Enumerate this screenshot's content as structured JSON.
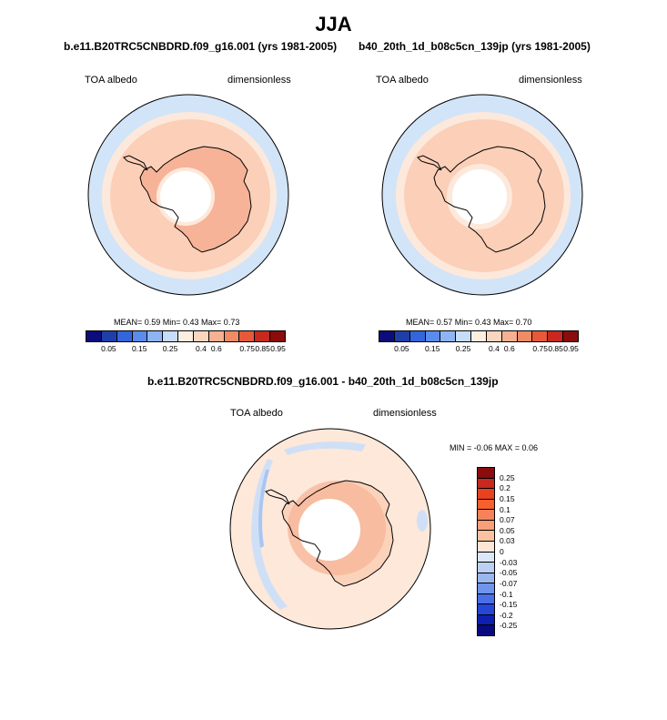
{
  "title": "JJA",
  "panels": [
    {
      "title": "b.e11.B20TRC5CNBDRD.f09_g16.001 (yrs 1981-2005)",
      "left_label": "TOA albedo",
      "right_label": "dimensionless",
      "stats": "MEAN=   0.59  Min=   0.43  Max=   0.73"
    },
    {
      "title": "b40_20th_1d_b08c5cn_139jp (yrs 1981-2005)",
      "left_label": "TOA albedo",
      "right_label": "dimensionless",
      "stats": "MEAN=   0.57  Min=   0.43  Max=   0.70"
    },
    {
      "title": "b.e11.B20TRC5CNBDRD.f09_g16.001 - b40_20th_1d_b08c5cn_139jp",
      "left_label": "TOA albedo",
      "right_label": "dimensionless",
      "stats": "MIN =  -0.06 MAX =   0.06"
    }
  ],
  "colorbar_abs": {
    "colors": [
      "#0c0c7a",
      "#1e3fa8",
      "#3366dd",
      "#5a8cee",
      "#8fb4f4",
      "#c6dcf8",
      "#fdeee0",
      "#fbd6bf",
      "#f6b092",
      "#f08b66",
      "#e65a3a",
      "#c8281e",
      "#8a0c0c"
    ],
    "labels": [
      "0.05",
      "0.15",
      "0.25",
      "0.4",
      "0.6",
      "0.75",
      "0.85",
      "0.95"
    ]
  },
  "colorbar_diff": {
    "colors": [
      "#8a0c0c",
      "#c8281e",
      "#e8421e",
      "#f5602c",
      "#f5825a",
      "#f8a07a",
      "#fbc2a2",
      "#fde6d6",
      "#dbe7f7",
      "#bcd0f4",
      "#9ab8f0",
      "#7094ec",
      "#4a6ee8",
      "#2447d8",
      "#0f1fb4",
      "#0a0a80"
    ],
    "labels": [
      "0.25",
      "0.2",
      "0.15",
      "0.1",
      "0.07",
      "0.05",
      "0.03",
      "0",
      "-0.03",
      "-0.05",
      "-0.07",
      "-0.1",
      "-0.15",
      "-0.2",
      "-0.25"
    ]
  },
  "map_colors": {
    "ocean_outer": "#d2e4f8",
    "ring_light": "#fde9dc",
    "ring_mid": "#fbcfb8",
    "ring_dark": "#f6b398",
    "pole_hole": "#ffffff",
    "diff_base": "#fde8da",
    "diff_mid": "#fbd2ba",
    "diff_dark": "#f7b79a",
    "diff_blue": "#cfe0f6",
    "diff_blue_dark": "#a9c6f2",
    "coast": "#000000"
  }
}
